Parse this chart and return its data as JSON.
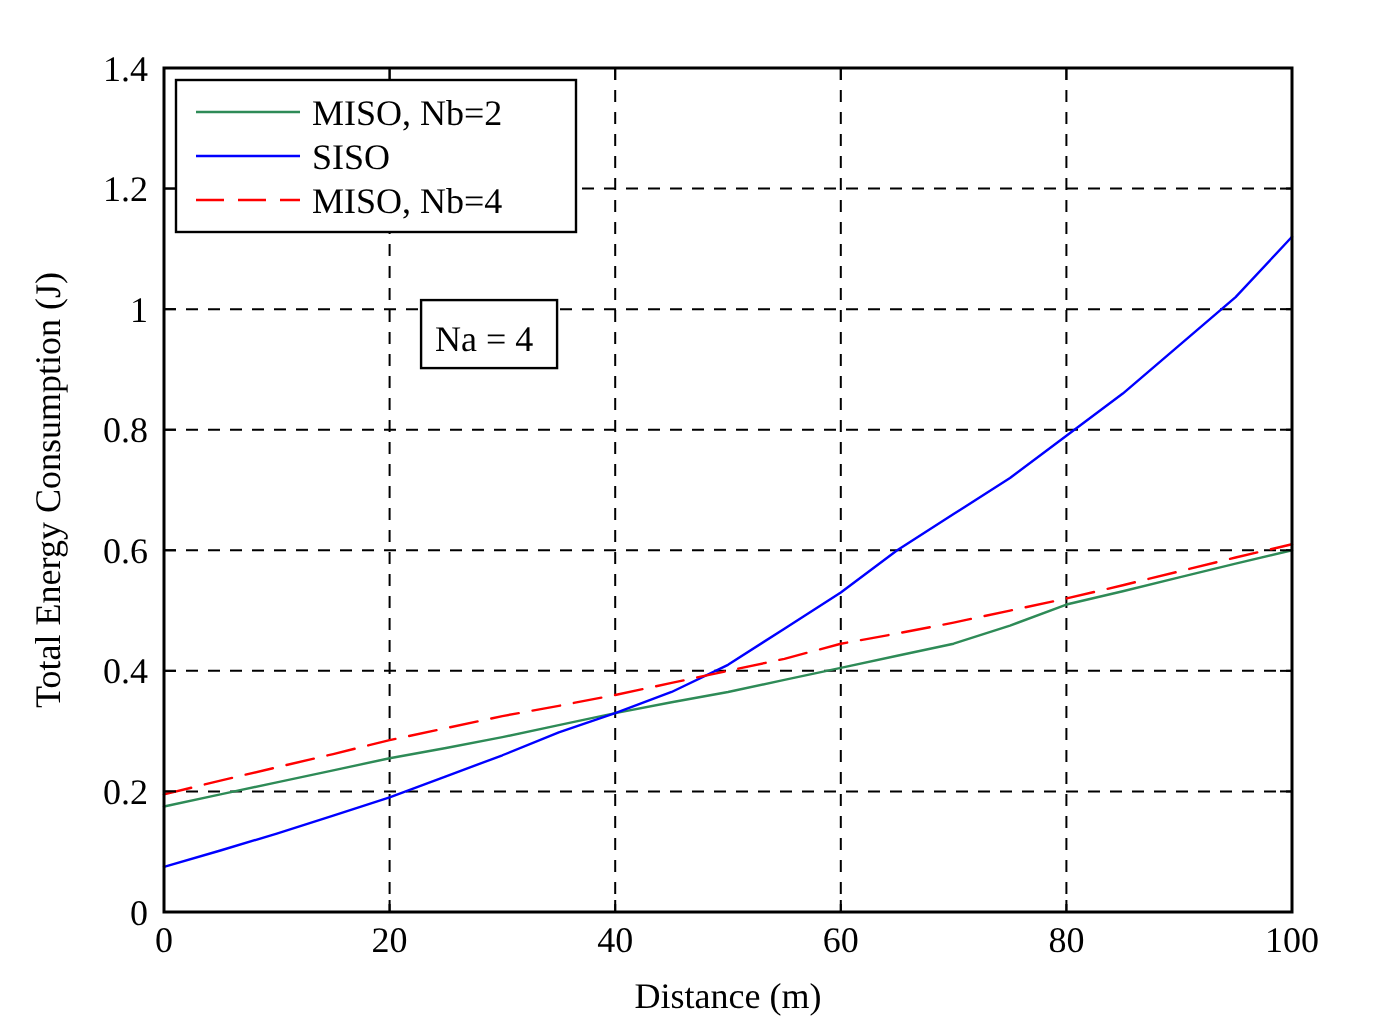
{
  "chart_data": {
    "type": "line",
    "xlabel": "Distance (m)",
    "ylabel": "Total Energy Consumption (J)",
    "x": [
      0,
      5,
      10,
      15,
      20,
      25,
      30,
      35,
      40,
      45,
      50,
      55,
      60,
      65,
      70,
      75,
      80,
      85,
      90,
      95,
      100
    ],
    "series": [
      {
        "name": "MISO, Nb=2",
        "color": "#2e8b57",
        "values": [
          0.175,
          0.195,
          0.215,
          0.235,
          0.255,
          0.272,
          0.29,
          0.31,
          0.33,
          0.348,
          0.365,
          0.385,
          0.405,
          0.425,
          0.445,
          0.475,
          0.51,
          0.532,
          0.555,
          0.578,
          0.6
        ]
      },
      {
        "name": "SISO",
        "color": "#0000ff",
        "values": [
          0.075,
          0.102,
          0.13,
          0.16,
          0.19,
          0.225,
          0.26,
          0.298,
          0.33,
          0.365,
          0.41,
          0.47,
          0.53,
          0.6,
          0.66,
          0.72,
          0.79,
          0.86,
          0.94,
          1.02,
          1.12
        ]
      },
      {
        "name": "MISO, Nb=4",
        "color": "#ff0000",
        "line_style": "dashed",
        "values": [
          0.195,
          0.218,
          0.24,
          0.262,
          0.285,
          0.305,
          0.325,
          0.342,
          0.36,
          0.38,
          0.4,
          0.42,
          0.445,
          0.462,
          0.48,
          0.5,
          0.52,
          0.542,
          0.565,
          0.588,
          0.61
        ]
      }
    ],
    "xlim": [
      0,
      100
    ],
    "xticks": [
      0,
      20,
      40,
      60,
      80,
      100
    ],
    "ylim": [
      0,
      1.4
    ],
    "yticks": [
      0,
      0.2,
      0.4,
      0.6,
      0.8,
      1,
      1.2,
      1.4
    ],
    "grid": true,
    "legend": "top left",
    "annotations": [
      "Na = 4"
    ]
  }
}
